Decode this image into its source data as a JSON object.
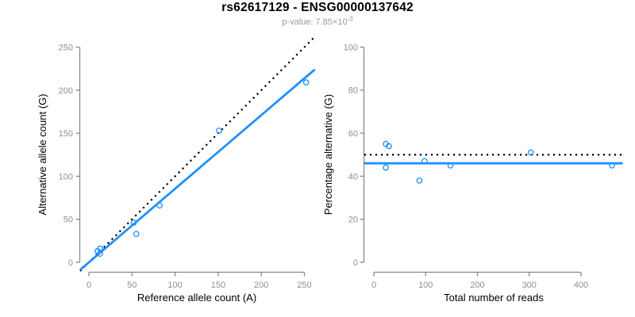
{
  "header": {
    "title": "rs62617129 - ENSG00000137642",
    "pvalue_label": "p-value: ",
    "pvalue_base": "7.85×10",
    "pvalue_exponent": "-3"
  },
  "colors": {
    "points": "#1E90FF",
    "fit_line": "#1E90FF",
    "reference_line": "#000000",
    "axis": "#8a8a8a",
    "tick_labels": "#8f8f8f",
    "axis_titles": "#000000",
    "title": "#000000",
    "subtitle": "#9b9b9b"
  },
  "chart_data": [
    {
      "type": "scatter",
      "panel": "allele-counts",
      "xlabel": "Reference allele count (A)",
      "ylabel": "Alternative allele count (G)",
      "xlim": [
        0,
        250
      ],
      "ylim": [
        0,
        250
      ],
      "xticks": [
        0,
        50,
        100,
        150,
        200,
        250
      ],
      "yticks": [
        0,
        50,
        100,
        150,
        200,
        250
      ],
      "point_style": "open-circle",
      "points": [
        [
          10,
          13
        ],
        [
          13,
          16
        ],
        [
          13,
          10
        ],
        [
          52,
          46
        ],
        [
          55,
          33
        ],
        [
          82,
          66
        ],
        [
          151,
          153
        ],
        [
          252,
          209
        ]
      ],
      "lines": [
        {
          "name": "identity",
          "type": "abline",
          "intercept": 0,
          "slope": 1,
          "style": "dotted",
          "color": "#000000"
        },
        {
          "name": "fit",
          "type": "abline",
          "intercept": 0,
          "slope": 0.855,
          "style": "solid",
          "color": "#1E90FF"
        }
      ],
      "grid": false,
      "legend": "none"
    },
    {
      "type": "scatter",
      "panel": "percentage-alternative",
      "xlabel": "Total number of reads",
      "ylabel": "Percentage alternative (G)",
      "xlim": [
        0,
        460
      ],
      "ylim": [
        0,
        100
      ],
      "xticks": [
        0,
        100,
        200,
        300,
        400
      ],
      "yticks": [
        0,
        20,
        40,
        60,
        80,
        100
      ],
      "point_style": "open-circle",
      "points": [
        [
          23,
          55
        ],
        [
          29,
          54
        ],
        [
          23,
          44
        ],
        [
          88,
          38
        ],
        [
          98,
          47
        ],
        [
          148,
          45
        ],
        [
          303,
          51
        ],
        [
          460,
          45
        ]
      ],
      "lines": [
        {
          "name": "expected-50pct",
          "type": "hline",
          "y": 50,
          "style": "dotted",
          "color": "#000000"
        },
        {
          "name": "fit",
          "type": "hline",
          "y": 46,
          "style": "solid",
          "color": "#1E90FF"
        }
      ],
      "grid": false,
      "legend": "none"
    }
  ]
}
